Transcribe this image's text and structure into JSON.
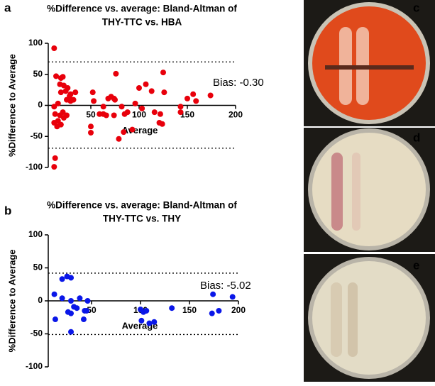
{
  "chart_data": [
    {
      "type": "scatter",
      "panel": "a",
      "title": [
        "%Difference vs. average: Bland-Altman of",
        "THY-TTC vs. HBA"
      ],
      "xlabel": "Average",
      "ylabel": "%Difference to Average",
      "annotation": "Bias: -0.30",
      "color": "#e8000b",
      "xlim": [
        0,
        200
      ],
      "ylim": [
        -100,
        100
      ],
      "xticks": [
        50,
        100,
        150,
        200
      ],
      "yticks": [
        -100,
        -50,
        0,
        50,
        100
      ],
      "limit_lines": [
        70,
        -69
      ],
      "x": [
        12,
        14,
        19,
        21,
        18,
        22,
        24,
        19,
        26,
        28,
        29,
        25,
        16,
        12,
        13,
        18,
        21,
        22,
        25,
        12,
        15,
        19,
        16,
        13,
        12,
        29,
        34,
        32,
        50,
        50,
        52,
        53,
        59,
        63,
        63,
        66,
        68,
        71,
        74,
        75,
        76,
        74,
        79,
        82,
        84,
        85,
        88,
        93,
        96,
        100,
        103,
        107,
        113,
        116,
        122,
        125,
        126,
        121,
        124,
        143,
        143,
        150,
        156,
        159,
        174
      ],
      "values": [
        92,
        47,
        44,
        46,
        34,
        32,
        23,
        21,
        28,
        15,
        7,
        9,
        3,
        -2,
        -14,
        -16,
        -11,
        -20,
        -16,
        -28,
        -34,
        -31,
        -25,
        -85,
        -99,
        18,
        21,
        9,
        -34,
        -44,
        21,
        7,
        -14,
        -2,
        -14,
        -16,
        11,
        14,
        11,
        9,
        51,
        -16,
        -54,
        -2,
        -43,
        -14,
        -11,
        -39,
        3,
        28,
        -5,
        34,
        23,
        -11,
        -14,
        53,
        21,
        -28,
        -30,
        -2,
        -11,
        11,
        18,
        7,
        16
      ]
    },
    {
      "type": "scatter",
      "panel": "b",
      "title": [
        "%Difference vs. average: Bland-Altman of",
        "THY-TTC vs. THY"
      ],
      "xlabel": "Average",
      "ylabel": "%Difference to Average",
      "annotation": "Bias: -5.02",
      "color": "#0a17e8",
      "xlim": [
        0,
        200
      ],
      "ylim": [
        -100,
        100
      ],
      "xticks": [
        50,
        100,
        150,
        200
      ],
      "yticks": [
        -100,
        -50,
        0,
        50,
        100
      ],
      "limit_lines": [
        42,
        -51
      ],
      "x": [
        12,
        13,
        20,
        20,
        25,
        29,
        29,
        26,
        29,
        32,
        35,
        38,
        43,
        42,
        46,
        29,
        45,
        100,
        103,
        106,
        101,
        109,
        114,
        132,
        174,
        173,
        180,
        194
      ],
      "values": [
        10,
        -28,
        4,
        33,
        37,
        35,
        0,
        -17,
        -19,
        -9,
        -11,
        4,
        -15,
        -28,
        0,
        -47,
        -15,
        -13,
        -17,
        -15,
        -30,
        -34,
        -32,
        -11,
        10,
        -19,
        -15,
        6
      ]
    }
  ],
  "photos": [
    "c",
    "d",
    "e"
  ]
}
